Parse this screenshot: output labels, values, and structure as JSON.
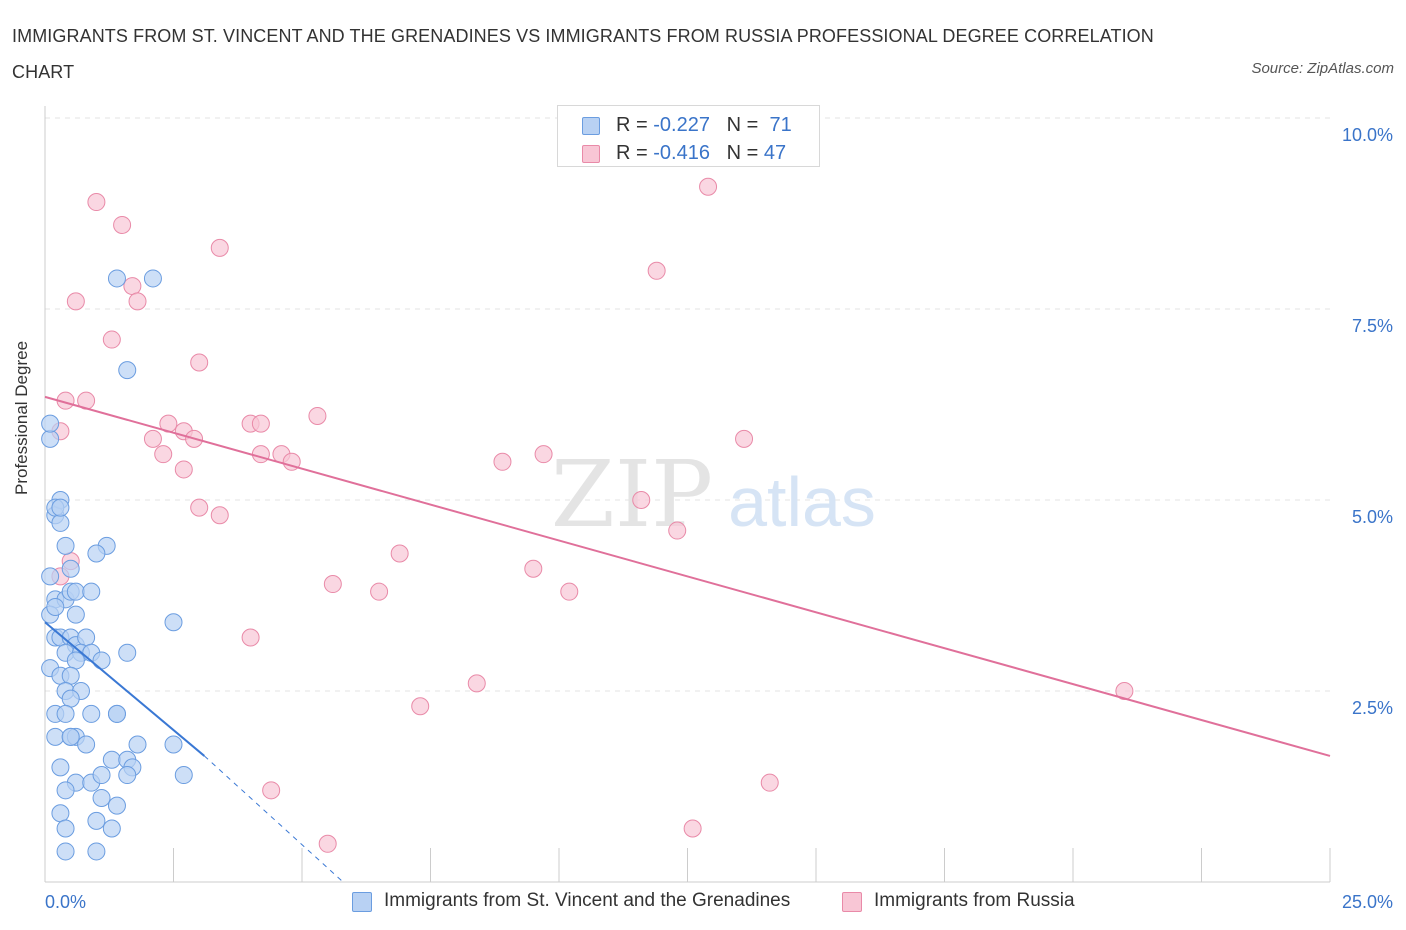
{
  "title": "IMMIGRANTS FROM ST. VINCENT AND THE GRENADINES VS IMMIGRANTS FROM RUSSIA PROFESSIONAL DEGREE CORRELATION CHART",
  "source": "Source: ZipAtlas.com",
  "watermark": {
    "zip": "ZIP",
    "atlas": "atlas"
  },
  "legend": {
    "row1": {
      "r_label": "R =",
      "r_value": "-0.227",
      "n_label": "N =",
      "n_value": "71"
    },
    "row2": {
      "r_label": "R =",
      "r_value": "-0.416",
      "n_label": "N =",
      "n_value": "47"
    }
  },
  "colors": {
    "blue_fill": "#b8d1f3",
    "blue_stroke": "#6b9de0",
    "blue_line": "#3a78d4",
    "pink_fill": "#f8c6d5",
    "pink_stroke": "#e98aa8",
    "pink_line": "#e0709a",
    "axis_label": "#3a74c9",
    "grid": "#e3e3e3"
  },
  "chart_data": {
    "type": "scatter",
    "title": "IMMIGRANTS FROM ST. VINCENT AND THE GRENADINES VS IMMIGRANTS FROM RUSSIA PROFESSIONAL DEGREE CORRELATION CHART",
    "xlabel": "",
    "ylabel": "Professional Degree",
    "xlim": [
      0,
      25
    ],
    "ylim": [
      0,
      10
    ],
    "x_tick_labels": [
      "0.0%",
      "25.0%"
    ],
    "y_tick_labels": [
      "2.5%",
      "5.0%",
      "7.5%",
      "10.0%"
    ],
    "y_ticks": [
      2.5,
      5.0,
      7.5,
      10.0
    ],
    "grid": true,
    "legend_position": "top-center",
    "series": [
      {
        "name": "Immigrants from St. Vincent and the Grenadines",
        "color": "#6b9de0",
        "r": -0.227,
        "n": 71,
        "trend": {
          "x": [
            0,
            3.1
          ],
          "y": [
            3.4,
            1.65
          ],
          "dashed_extension": {
            "x": [
              3.1,
              5.8
            ],
            "y": [
              1.65,
              0.0
            ]
          }
        },
        "points": [
          [
            0.1,
            5.8
          ],
          [
            0.2,
            4.8
          ],
          [
            0.3,
            5.0
          ],
          [
            0.2,
            4.9
          ],
          [
            0.3,
            4.7
          ],
          [
            0.4,
            4.4
          ],
          [
            0.1,
            4.0
          ],
          [
            0.5,
            4.1
          ],
          [
            0.2,
            3.7
          ],
          [
            0.4,
            3.7
          ],
          [
            0.5,
            3.8
          ],
          [
            0.6,
            3.8
          ],
          [
            0.9,
            3.8
          ],
          [
            0.1,
            3.5
          ],
          [
            1.2,
            4.4
          ],
          [
            1.0,
            4.3
          ],
          [
            0.2,
            3.2
          ],
          [
            0.3,
            3.2
          ],
          [
            0.5,
            3.2
          ],
          [
            0.6,
            3.1
          ],
          [
            0.8,
            3.2
          ],
          [
            0.4,
            3.0
          ],
          [
            0.7,
            3.0
          ],
          [
            0.9,
            3.0
          ],
          [
            0.6,
            2.9
          ],
          [
            1.1,
            2.9
          ],
          [
            1.6,
            3.0
          ],
          [
            0.1,
            2.8
          ],
          [
            0.3,
            2.7
          ],
          [
            0.5,
            2.7
          ],
          [
            0.4,
            2.5
          ],
          [
            0.7,
            2.5
          ],
          [
            0.5,
            2.4
          ],
          [
            2.5,
            3.4
          ],
          [
            0.2,
            2.2
          ],
          [
            0.4,
            2.2
          ],
          [
            1.4,
            2.2
          ],
          [
            1.4,
            2.2
          ],
          [
            0.2,
            1.9
          ],
          [
            0.5,
            1.9
          ],
          [
            0.6,
            1.9
          ],
          [
            0.5,
            1.9
          ],
          [
            0.8,
            1.8
          ],
          [
            1.8,
            1.8
          ],
          [
            2.5,
            1.8
          ],
          [
            1.3,
            1.6
          ],
          [
            1.6,
            1.6
          ],
          [
            0.3,
            1.5
          ],
          [
            1.7,
            1.5
          ],
          [
            1.6,
            1.4
          ],
          [
            2.7,
            1.4
          ],
          [
            0.6,
            1.3
          ],
          [
            0.9,
            1.3
          ],
          [
            1.1,
            1.1
          ],
          [
            1.4,
            1.0
          ],
          [
            0.3,
            0.9
          ],
          [
            1.0,
            0.8
          ],
          [
            0.4,
            0.7
          ],
          [
            1.3,
            0.7
          ],
          [
            0.4,
            0.4
          ],
          [
            1.0,
            0.4
          ],
          [
            2.1,
            7.9
          ],
          [
            1.4,
            7.9
          ],
          [
            1.6,
            6.7
          ],
          [
            0.1,
            6.0
          ],
          [
            0.3,
            4.9
          ],
          [
            0.2,
            3.6
          ],
          [
            0.6,
            3.5
          ],
          [
            0.9,
            2.2
          ],
          [
            1.1,
            1.4
          ],
          [
            0.4,
            1.2
          ]
        ]
      },
      {
        "name": "Immigrants from Russia",
        "color": "#e98aa8",
        "r": -0.416,
        "n": 47,
        "trend": {
          "x": [
            0,
            25
          ],
          "y": [
            6.35,
            1.65
          ]
        },
        "points": [
          [
            1.0,
            8.9
          ],
          [
            1.5,
            8.6
          ],
          [
            3.4,
            8.3
          ],
          [
            12.9,
            9.1
          ],
          [
            11.9,
            8.0
          ],
          [
            0.6,
            7.6
          ],
          [
            1.7,
            7.8
          ],
          [
            1.8,
            7.6
          ],
          [
            1.3,
            7.1
          ],
          [
            3.0,
            6.8
          ],
          [
            0.4,
            6.3
          ],
          [
            0.8,
            6.3
          ],
          [
            0.3,
            5.9
          ],
          [
            2.4,
            6.0
          ],
          [
            2.7,
            5.9
          ],
          [
            4.0,
            6.0
          ],
          [
            5.3,
            6.1
          ],
          [
            2.1,
            5.8
          ],
          [
            2.9,
            5.8
          ],
          [
            4.2,
            6.0
          ],
          [
            2.3,
            5.6
          ],
          [
            4.2,
            5.6
          ],
          [
            4.6,
            5.6
          ],
          [
            4.8,
            5.5
          ],
          [
            2.7,
            5.4
          ],
          [
            8.9,
            5.5
          ],
          [
            9.7,
            5.6
          ],
          [
            13.6,
            5.8
          ],
          [
            11.6,
            5.0
          ],
          [
            3.0,
            4.9
          ],
          [
            3.4,
            4.8
          ],
          [
            12.3,
            4.6
          ],
          [
            6.9,
            4.3
          ],
          [
            9.5,
            4.1
          ],
          [
            0.3,
            4.0
          ],
          [
            5.6,
            3.9
          ],
          [
            6.5,
            3.8
          ],
          [
            10.2,
            3.8
          ],
          [
            4.0,
            3.2
          ],
          [
            8.4,
            2.6
          ],
          [
            7.3,
            2.3
          ],
          [
            21.0,
            2.5
          ],
          [
            4.4,
            1.2
          ],
          [
            14.1,
            1.3
          ],
          [
            12.6,
            0.7
          ],
          [
            5.5,
            0.5
          ],
          [
            0.5,
            4.2
          ]
        ]
      }
    ]
  },
  "bottom_legend": {
    "item1": "Immigrants from St. Vincent and the Grenadines",
    "item2": "Immigrants from Russia"
  }
}
